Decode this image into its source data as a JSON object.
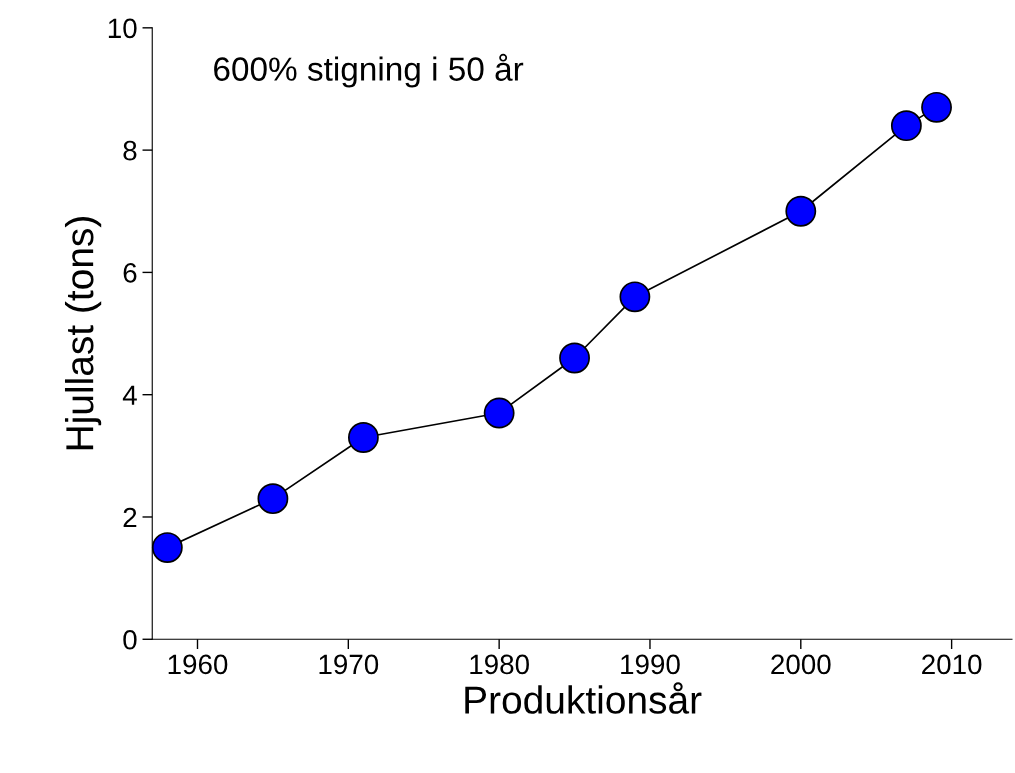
{
  "chart_data": {
    "type": "line",
    "xlabel": "Produktionsår",
    "ylabel": "Hjullast (tons)",
    "annotations": [
      "600% stigning i 50 år"
    ],
    "x": [
      1958,
      1965,
      1971,
      1980,
      1985,
      1989,
      2000,
      2007,
      2009
    ],
    "series": [
      {
        "color": "#0000ff",
        "values": [
          1.5,
          2.3,
          3.3,
          3.7,
          4.6,
          5.6,
          7.0,
          8.4,
          8.7
        ]
      }
    ],
    "xlim": [
      1957,
      2014
    ],
    "xticks": [
      1960,
      1970,
      1980,
      1990,
      2000,
      2010
    ],
    "ylim": [
      0,
      10
    ],
    "yticks": [
      0,
      2,
      4,
      6,
      8,
      10
    ],
    "grid": false,
    "legend": false,
    "marker": "circle",
    "line_style": "solid"
  }
}
